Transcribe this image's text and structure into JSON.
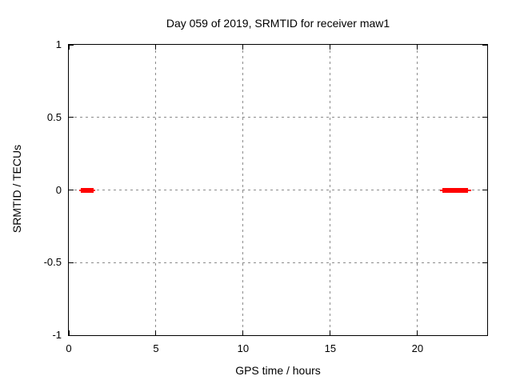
{
  "figure": {
    "title": "Day 059 of 2019, SRMTID for receiver maw1",
    "xlabel": "GPS time / hours",
    "ylabel": "SRMTID / TECUs"
  },
  "colors": {
    "series": "#ff0000",
    "grid": "#8c8c8c",
    "axis": "#000000",
    "background": "#ffffff",
    "text": "#000000"
  },
  "chart_data": {
    "type": "line",
    "title": "Day 059 of 2019, SRMTID for receiver maw1",
    "xlabel": "GPS time / hours",
    "ylabel": "SRMTID / TECUs",
    "xlim": [
      0,
      24
    ],
    "ylim": [
      -1,
      1
    ],
    "grid": true,
    "legend": false,
    "xticks": [
      {
        "v": 0,
        "label": "0"
      },
      {
        "v": 5,
        "label": "5"
      },
      {
        "v": 10,
        "label": "10"
      },
      {
        "v": 15,
        "label": "15"
      },
      {
        "v": 20,
        "label": "20"
      }
    ],
    "yticks": [
      {
        "v": 1,
        "label": "1"
      },
      {
        "v": 0.5,
        "label": "0.5"
      },
      {
        "v": 0,
        "label": "0"
      },
      {
        "v": -0.5,
        "label": "-0.5"
      },
      {
        "v": -1,
        "label": "-1"
      }
    ],
    "series": [
      {
        "name": "SRMTID",
        "color": "#ff0000",
        "segments": [
          {
            "y": 0.0,
            "x_start": 0.6,
            "x_end": 1.5,
            "core_x_start": 0.7,
            "core_x_end": 1.4
          },
          {
            "y": 0.0,
            "x_start": 21.3,
            "x_end": 23.1,
            "core_x_start": 21.45,
            "core_x_end": 22.9
          }
        ]
      }
    ]
  }
}
